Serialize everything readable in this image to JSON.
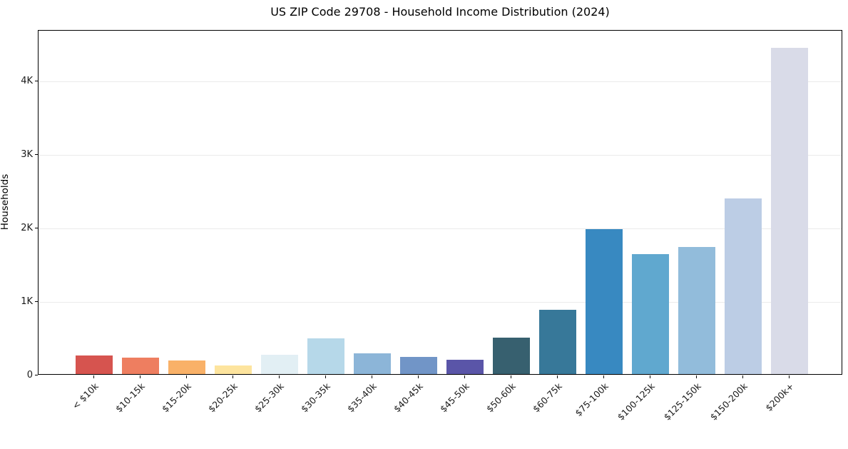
{
  "figure": {
    "background": "#ffffff",
    "axis_color": "#000000",
    "grid_color": "#ebebeb",
    "tick_label_color": "#1a1a1a"
  },
  "chart_data": {
    "type": "bar",
    "title": "US ZIP Code 29708 - Household Income Distribution (2024)",
    "xlabel": "",
    "ylabel": "Households",
    "categories": [
      "< $10k",
      "$10-15k",
      "$15-20k",
      "$20-25k",
      "$25-30k",
      "$30-35k",
      "$35-40k",
      "$40-45k",
      "$45-50k",
      "$50-60k",
      "$60-75k",
      "$75-100k",
      "$100-125k",
      "$125-150k",
      "$150-200k",
      "$200k+"
    ],
    "values": [
      250,
      220,
      185,
      120,
      265,
      485,
      285,
      235,
      195,
      500,
      870,
      1970,
      1630,
      1730,
      2390,
      4440
    ],
    "bar_colors": [
      "#d6544f",
      "#ee7e60",
      "#f9b168",
      "#fde49e",
      "#e2eff4",
      "#b6d8e9",
      "#8cb5d8",
      "#7195c7",
      "#5a55a8",
      "#37606f",
      "#377899",
      "#3889c1",
      "#60a8cf",
      "#92bcdb",
      "#bccde5",
      "#d9dbe8"
    ],
    "yticks": {
      "values": [
        0,
        1000,
        2000,
        3000,
        4000
      ],
      "labels": [
        "0",
        "1K",
        "2K",
        "3K",
        "4K"
      ]
    },
    "ylim": [
      0,
      4690
    ],
    "grid": "horizontal",
    "legend": "none"
  }
}
